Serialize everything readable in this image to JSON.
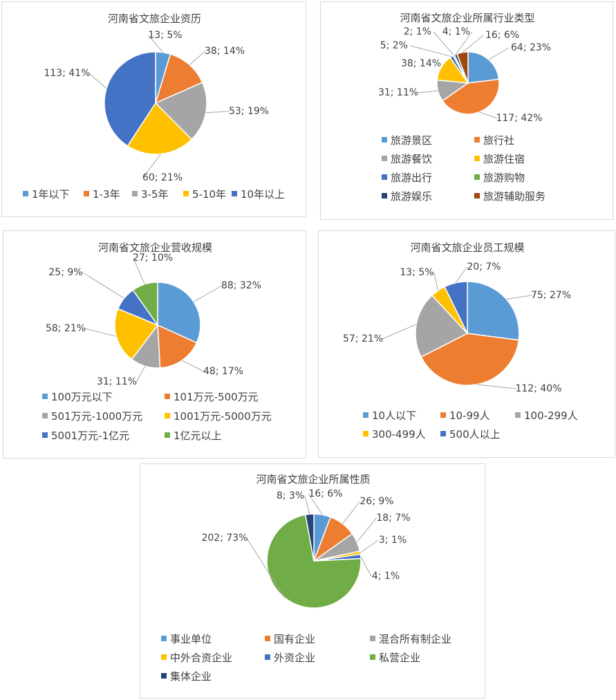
{
  "chart_data": [
    {
      "type": "pie",
      "title": "河南省文旅企业资历",
      "categories": [
        "1年以下",
        "1-3年",
        "3-5年",
        "5-10年",
        "10年以上"
      ],
      "values": [
        13,
        38,
        53,
        60,
        113
      ],
      "percents": [
        "5%",
        "14%",
        "19%",
        "21%",
        "41%"
      ],
      "colors": [
        "#5B9BD5",
        "#ED7D31",
        "#A5A5A5",
        "#FFC000",
        "#4472C4"
      ],
      "legend": "bottom"
    },
    {
      "type": "pie",
      "title": "河南省文旅企业所属行业类型",
      "categories": [
        "旅游景区",
        "旅行社",
        "旅游餐饮",
        "旅游住宿",
        "旅游出行",
        "旅游购物",
        "旅游娱乐",
        "旅游辅助服务"
      ],
      "values": [
        64,
        117,
        31,
        38,
        5,
        2,
        4,
        16
      ],
      "percents": [
        "23%",
        "42%",
        "11%",
        "14%",
        "2%",
        "1%",
        "1%",
        "6%"
      ],
      "colors": [
        "#5B9BD5",
        "#ED7D31",
        "#A5A5A5",
        "#FFC000",
        "#4472C4",
        "#70AD47",
        "#264478",
        "#9E480E"
      ],
      "legend": "bottom"
    },
    {
      "type": "pie",
      "title": "河南省文旅企业营收规模",
      "categories": [
        "100万元以下",
        "101万元-500万元",
        "501万元-1000万元",
        "1001万元-5000万元",
        "5001万元-1亿元",
        "1亿元以上"
      ],
      "values": [
        88,
        48,
        31,
        58,
        25,
        27
      ],
      "percents": [
        "32%",
        "17%",
        "11%",
        "21%",
        "9%",
        "10%"
      ],
      "colors": [
        "#5B9BD5",
        "#ED7D31",
        "#A5A5A5",
        "#FFC000",
        "#4472C4",
        "#70AD47"
      ],
      "legend": "bottom"
    },
    {
      "type": "pie",
      "title": "河南省文旅企业员工规模",
      "categories": [
        "10人以下",
        "10-99人",
        "100-299人",
        "300-499人",
        "500人以上"
      ],
      "values": [
        75,
        112,
        57,
        13,
        20
      ],
      "percents": [
        "27%",
        "40%",
        "21%",
        "5%",
        "7%"
      ],
      "colors": [
        "#5B9BD5",
        "#ED7D31",
        "#A5A5A5",
        "#FFC000",
        "#4472C4"
      ],
      "legend": "bottom"
    },
    {
      "type": "pie",
      "title": "河南省文旅企业所属性质",
      "categories": [
        "事业单位",
        "国有企业",
        "混合所有制企业",
        "中外合资企业",
        "外资企业",
        "私营企业",
        "集体企业"
      ],
      "values": [
        16,
        26,
        18,
        3,
        4,
        202,
        8
      ],
      "percents": [
        "6%",
        "9%",
        "7%",
        "1%",
        "1%",
        "73%",
        "3%"
      ],
      "colors": [
        "#5B9BD5",
        "#ED7D31",
        "#A5A5A5",
        "#FFC000",
        "#4472C4",
        "#70AD47",
        "#264478"
      ],
      "legend": "bottom"
    }
  ]
}
